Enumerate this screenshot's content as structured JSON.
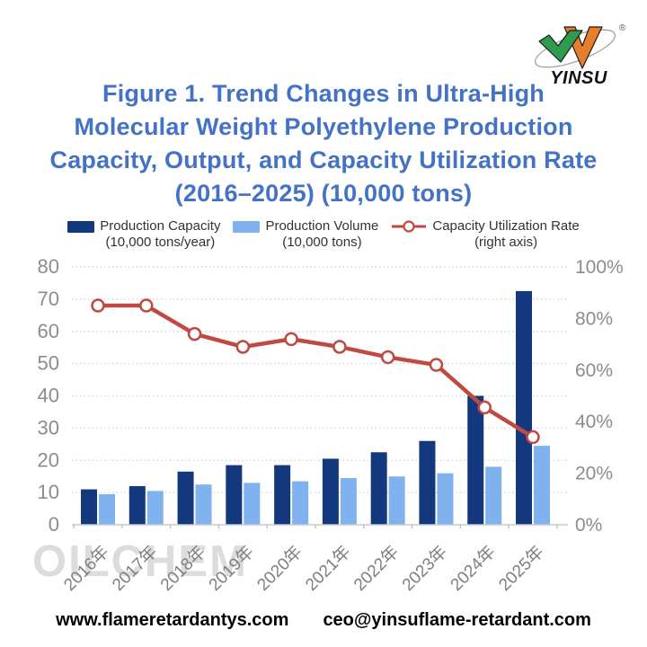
{
  "logo": {
    "text": "YINSU",
    "registered_mark": "®",
    "colors": {
      "green": "#2E9B4F",
      "orange": "#E87E2B"
    }
  },
  "title": {
    "lines": [
      "Figure 1. Trend Changes in Ultra-High",
      "Molecular Weight Polyethylene Production",
      "Capacity, Output, and Capacity Utilization Rate",
      "(2016–2025) (10,000 tons)"
    ],
    "color": "#4472C4"
  },
  "legend": {
    "items": [
      {
        "swatch": "dark-blue-rect",
        "line1": "Production Capacity",
        "line2": "(10,000 tons/year)"
      },
      {
        "swatch": "light-blue-rect",
        "line1": "Production Volume",
        "line2": "(10,000 tons)"
      },
      {
        "swatch": "red-line-open-circle",
        "line1": "Capacity Utilization Rate",
        "line2": "(right axis)"
      }
    ]
  },
  "watermark": "OILCHEM",
  "footer": {
    "website": "www.flameretardantys.com",
    "email": "ceo@yinsuflame-retardant.com"
  },
  "chart_data": {
    "type": "bar",
    "subtype": "grouped bars + line on secondary axis",
    "categories": [
      "2016年",
      "2017年",
      "2018年",
      "2019年",
      "2020年",
      "2021年",
      "2022年",
      "2023年",
      "2024年",
      "2025年"
    ],
    "series": [
      {
        "name": "Production Capacity (10,000 tons/year)",
        "type": "bar",
        "axis": "left",
        "color": "#14387E",
        "values": [
          11,
          12,
          16.5,
          18.5,
          18.5,
          20.5,
          22.5,
          26,
          40,
          72.5
        ]
      },
      {
        "name": "Production Volume (10,000 tons)",
        "type": "bar",
        "axis": "left",
        "color": "#7FB2EF",
        "values": [
          9.5,
          10.5,
          12.5,
          13,
          13.5,
          14.5,
          15,
          16,
          18,
          24.5
        ]
      },
      {
        "name": "Capacity Utilization Rate (right axis)",
        "type": "line",
        "axis": "right",
        "color": "#BE4A42",
        "marker": "open-circle",
        "unit": "%",
        "values": [
          85,
          85,
          74,
          69,
          72,
          69,
          65,
          62,
          45.5,
          34
        ]
      }
    ],
    "left_axis": {
      "min": 0,
      "max": 80,
      "step": 10,
      "suffix": ""
    },
    "right_axis": {
      "min": 0,
      "max": 100,
      "step": 20,
      "suffix": "%"
    },
    "grid": {
      "horizontal": "dotted",
      "color": "#D9D9D9"
    },
    "tick_color": "#8C8C8C",
    "category_label_color": "#7F7F7F",
    "legend_position": "top"
  }
}
